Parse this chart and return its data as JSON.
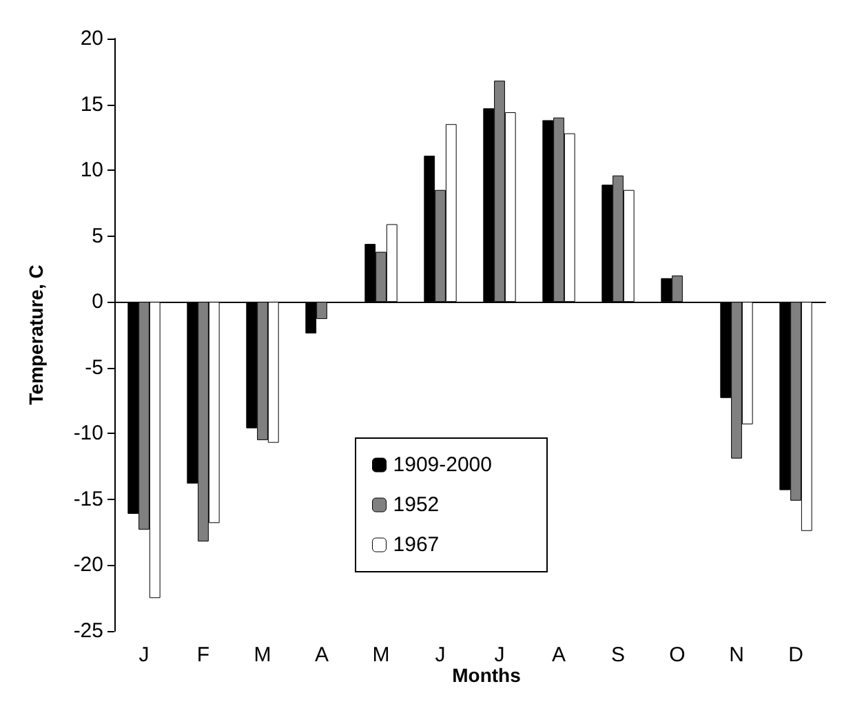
{
  "chart_data": {
    "type": "bar",
    "xlabel": "Months",
    "ylabel": "Temperature, C",
    "categories": [
      "J",
      "F",
      "M",
      "A",
      "M",
      "J",
      "J",
      "A",
      "S",
      "O",
      "N",
      "D"
    ],
    "series": [
      {
        "name": "1909-2000",
        "color": "#000000",
        "values": [
          -16.1,
          -13.8,
          -9.6,
          -2.4,
          4.4,
          11.1,
          14.7,
          13.8,
          8.9,
          1.8,
          -7.3,
          -14.3
        ]
      },
      {
        "name": "1952",
        "color": "#808080",
        "values": [
          -17.3,
          -18.2,
          -10.5,
          -1.3,
          3.8,
          8.5,
          16.8,
          14.0,
          9.6,
          2.0,
          -11.9,
          -15.1
        ]
      },
      {
        "name": "1967",
        "color": "#ffffff",
        "values": [
          -22.5,
          -16.8,
          -10.7,
          null,
          5.9,
          13.5,
          14.4,
          12.8,
          8.5,
          null,
          -9.3,
          -17.4
        ]
      }
    ],
    "ylim": [
      -25,
      20
    ],
    "yticks": [
      -25,
      -20,
      -15,
      -10,
      -5,
      0,
      5,
      10,
      15,
      20
    ],
    "legend": "bottom"
  }
}
